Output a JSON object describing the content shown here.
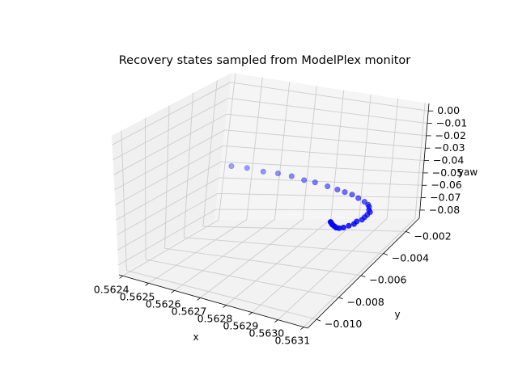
{
  "chart_data": {
    "type": "scatter",
    "projection": "3d",
    "title": "Recovery states sampled from ModelPlex monitor",
    "xlabel": "x",
    "ylabel": "y",
    "zlabel": "yaw",
    "x_ticks": [
      "0.5624",
      "0.5625",
      "0.5626",
      "0.5627",
      "0.5628",
      "0.5629",
      "0.5630",
      "0.5631"
    ],
    "y_ticks": [
      "−0.002",
      "−0.004",
      "−0.006",
      "−0.008",
      "−0.010"
    ],
    "z_ticks": [
      "0.00",
      "−0.01",
      "−0.02",
      "−0.03",
      "−0.04",
      "−0.05",
      "−0.06",
      "−0.07",
      "−0.08"
    ],
    "grid": true,
    "marker_color": "#0000ff",
    "pane_color": "#f2f2f2",
    "grid_color": "#cccccc",
    "series": [
      {
        "points": [
          {
            "x": 0.5624,
            "y": -0.0011,
            "yaw": -0.084
          },
          {
            "x": 0.56246,
            "y": -0.0011,
            "yaw": -0.082
          },
          {
            "x": 0.56253,
            "y": -0.0013,
            "yaw": -0.079
          },
          {
            "x": 0.56259,
            "y": -0.0014,
            "yaw": -0.076
          },
          {
            "x": 0.56265,
            "y": -0.0016,
            "yaw": -0.073
          },
          {
            "x": 0.56271,
            "y": -0.0019,
            "yaw": -0.07
          },
          {
            "x": 0.56276,
            "y": -0.0021,
            "yaw": -0.067
          },
          {
            "x": 0.56282,
            "y": -0.0024,
            "yaw": -0.064
          },
          {
            "x": 0.56287,
            "y": -0.0027,
            "yaw": -0.061
          },
          {
            "x": 0.56291,
            "y": -0.003,
            "yaw": -0.058
          },
          {
            "x": 0.56295,
            "y": -0.0033,
            "yaw": -0.055
          },
          {
            "x": 0.56299,
            "y": -0.0037,
            "yaw": -0.052
          },
          {
            "x": 0.56303,
            "y": -0.0041,
            "yaw": -0.049
          },
          {
            "x": 0.56306,
            "y": -0.0045,
            "yaw": -0.046
          },
          {
            "x": 0.56308,
            "y": -0.0049,
            "yaw": -0.043
          },
          {
            "x": 0.5631,
            "y": -0.0054,
            "yaw": -0.04
          },
          {
            "x": 0.56312,
            "y": -0.0058,
            "yaw": -0.037
          },
          {
            "x": 0.56313,
            "y": -0.0063,
            "yaw": -0.034
          },
          {
            "x": 0.56314,
            "y": -0.0068,
            "yaw": -0.031
          },
          {
            "x": 0.56315,
            "y": -0.0073,
            "yaw": -0.028
          },
          {
            "x": 0.56315,
            "y": -0.0078,
            "yaw": -0.025
          },
          {
            "x": 0.56316,
            "y": -0.0083,
            "yaw": -0.022
          },
          {
            "x": 0.56316,
            "y": -0.0088,
            "yaw": -0.019
          },
          {
            "x": 0.56316,
            "y": -0.0093,
            "yaw": -0.016
          },
          {
            "x": 0.56316,
            "y": -0.0097,
            "yaw": -0.013
          },
          {
            "x": 0.56316,
            "y": -0.01,
            "yaw": -0.01
          },
          {
            "x": 0.56316,
            "y": -0.0102,
            "yaw": -0.007
          },
          {
            "x": 0.56316,
            "y": -0.0104,
            "yaw": -0.004
          },
          {
            "x": 0.56316,
            "y": -0.0105,
            "yaw": -0.002
          },
          {
            "x": 0.56316,
            "y": -0.0106,
            "yaw": 0.0
          }
        ]
      }
    ]
  }
}
